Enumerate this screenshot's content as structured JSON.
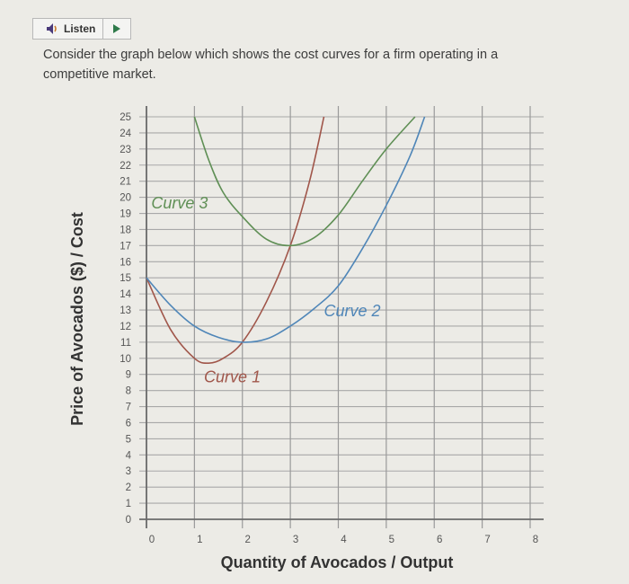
{
  "toolbar": {
    "listen_label": "Listen",
    "speaker_icon": "speaker-icon",
    "play_icon": "play-icon"
  },
  "question": {
    "text": "Consider the graph below which shows the cost curves for a firm operating in a competitive market."
  },
  "chart_data": {
    "type": "line",
    "title": "",
    "xlabel": "Quantity of Avocados / Output",
    "ylabel": "Price of Avocados ($) / Cost",
    "xlim": [
      0,
      8
    ],
    "ylim": [
      0,
      25
    ],
    "x_ticks": [
      "0",
      "1",
      "2",
      "3",
      "4",
      "5",
      "6",
      "7",
      "8"
    ],
    "y_ticks": [
      "0",
      "1",
      "2",
      "3",
      "4",
      "5",
      "6",
      "7",
      "8",
      "9",
      "10",
      "11",
      "12",
      "13",
      "14",
      "15",
      "16",
      "17",
      "18",
      "19",
      "20",
      "21",
      "22",
      "23",
      "24",
      "25"
    ],
    "grid": true,
    "series": [
      {
        "name": "Curve 1",
        "color": "#a0564a",
        "points": [
          [
            0,
            15
          ],
          [
            0.5,
            11.8
          ],
          [
            1,
            10
          ],
          [
            1.3,
            9.7
          ],
          [
            1.6,
            10
          ],
          [
            2,
            11
          ],
          [
            2.5,
            13.5
          ],
          [
            3,
            17
          ],
          [
            3.4,
            21
          ],
          [
            3.7,
            25
          ]
        ]
      },
      {
        "name": "Curve 2",
        "color": "#4f86b8",
        "points": [
          [
            0,
            15
          ],
          [
            0.5,
            13.3
          ],
          [
            1,
            12
          ],
          [
            1.5,
            11.3
          ],
          [
            2,
            11
          ],
          [
            2.5,
            11.2
          ],
          [
            3,
            12
          ],
          [
            3.5,
            13.1
          ],
          [
            4,
            14.5
          ],
          [
            4.5,
            16.8
          ],
          [
            5,
            19.5
          ],
          [
            5.5,
            22.6
          ],
          [
            5.8,
            25
          ]
        ]
      },
      {
        "name": "Curve 3",
        "color": "#5f8f55",
        "points": [
          [
            1,
            25
          ],
          [
            1.3,
            22.3
          ],
          [
            1.6,
            20.3
          ],
          [
            2,
            18.8
          ],
          [
            2.5,
            17.4
          ],
          [
            3,
            17
          ],
          [
            3.5,
            17.5
          ],
          [
            4,
            18.9
          ],
          [
            4.5,
            21
          ],
          [
            5,
            23
          ],
          [
            5.6,
            25
          ]
        ]
      }
    ],
    "annotations": [
      {
        "text": "Curve 3",
        "x": 0.1,
        "y": 19.3
      },
      {
        "text": "Curve 2",
        "x": 3.7,
        "y": 12.6
      },
      {
        "text": "Curve 1",
        "x": 1.2,
        "y": 8.5
      }
    ]
  }
}
